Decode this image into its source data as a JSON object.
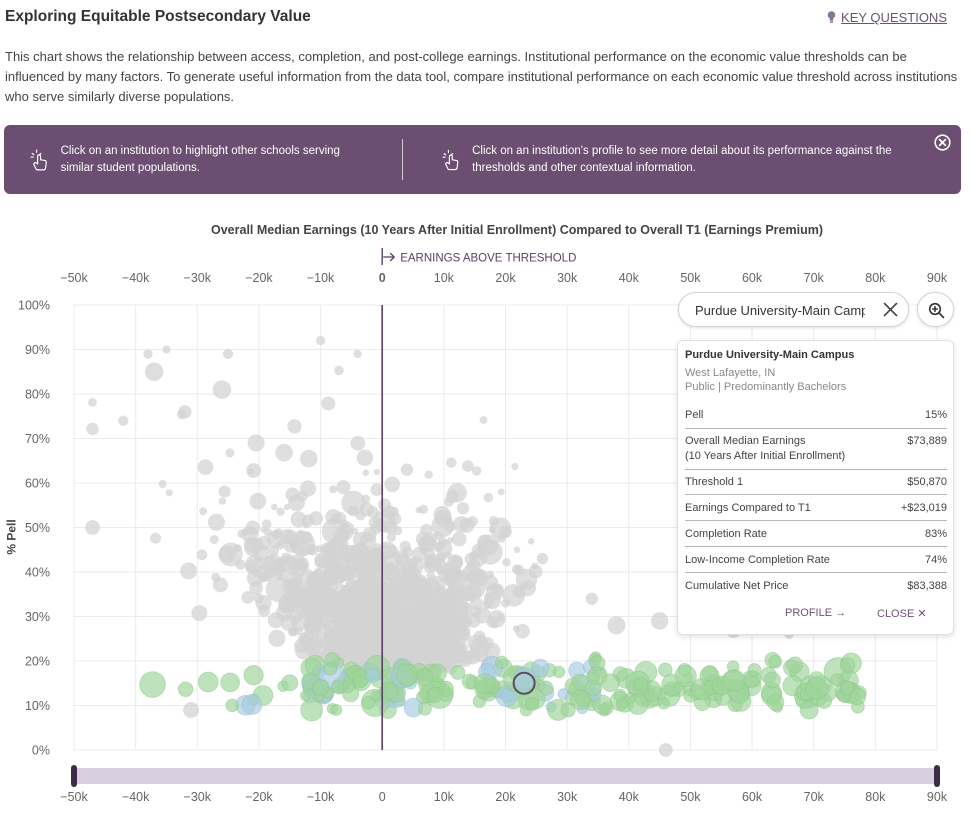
{
  "header": {
    "title": "Exploring Equitable Postsecondary Value",
    "key_questions": "KEY QUESTIONS"
  },
  "intro": "This chart shows the relationship between access, completion, and post-college earnings. Institutional performance on the economic value thresholds can be influenced by many factors. To generate useful information from the data tool, compare institutional performance on each economic value threshold across institutions who serve similarly diverse populations.",
  "banner": {
    "tip1": "Click on an institution to highlight other schools serving similar student populations.",
    "tip2": "Click on an institution's profile to see more detail about its performance against the thresholds and other contextual information.",
    "close_icon": "close-circle-icon"
  },
  "search": {
    "value": "Purdue University-Main Campus",
    "clear_icon": "close-icon",
    "zoom_icon": "zoom-icon"
  },
  "card": {
    "name": "Purdue University-Main Campus",
    "location": "West Lafayette, IN",
    "type": "Public  |  Predominantly Bachelors",
    "rows": [
      {
        "label": "Pell",
        "value": "15%"
      },
      {
        "label": "Overall Median Earnings",
        "label2": "(10 Years After Initial Enrollment)",
        "value": "$73,889"
      },
      {
        "label": "Threshold 1",
        "value": "$50,870"
      },
      {
        "label": "Earnings Compared to T1",
        "value": "+$23,019"
      },
      {
        "label": "Completion Rate",
        "value": "83%"
      },
      {
        "label": "Low-Income Completion Rate",
        "value": "74%"
      },
      {
        "label": "Cumulative Net Price",
        "value": "$83,388"
      }
    ],
    "profile": "PROFILE",
    "close": "CLOSE"
  },
  "chart_data": {
    "type": "scatter",
    "title": "Overall Median Earnings (10 Years After Initial Enrollment) Compared to Overall T1 (Earnings Premium)",
    "xlabel": "",
    "ylabel": "% Pell",
    "threshold_label": "EARNINGS ABOVE THRESHOLD",
    "xlim": [
      -50000,
      90000
    ],
    "ylim": [
      0,
      100
    ],
    "x_ticks": [
      "−50k",
      "−40k",
      "−30k",
      "−20k",
      "−10k",
      "0",
      "10k",
      "20k",
      "30k",
      "40k",
      "50k",
      "60k",
      "70k",
      "80k",
      "90k"
    ],
    "x_tick_values": [
      -50000,
      -40000,
      -30000,
      -20000,
      -10000,
      0,
      10000,
      20000,
      30000,
      40000,
      50000,
      60000,
      70000,
      80000,
      90000
    ],
    "y_ticks": [
      "0%",
      "10%",
      "20%",
      "30%",
      "40%",
      "50%",
      "60%",
      "70%",
      "80%",
      "90%",
      "100%"
    ],
    "y_tick_values": [
      0,
      10,
      20,
      30,
      40,
      50,
      60,
      70,
      80,
      90,
      100
    ],
    "threshold_x": 0,
    "grid": true,
    "colors": {
      "other": "#d3d3d3",
      "similar_green": "#9fd49b",
      "similar_blue": "#a8cbe3",
      "selected_outline": "#5a4a63",
      "threshold_line": "#5b3f66",
      "range_track": "#d9d0df",
      "range_handle": "#3e2b47"
    },
    "selected": {
      "name": "Purdue University-Main Campus",
      "x": 23019,
      "y": 15
    },
    "range_slider": {
      "min": -50000,
      "max": 90000
    }
  }
}
